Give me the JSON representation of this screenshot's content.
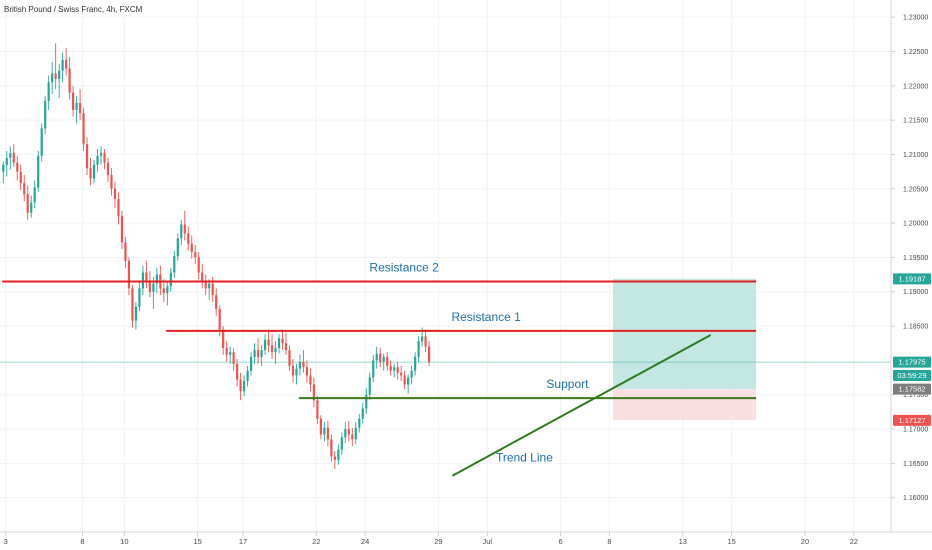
{
  "chart_data": {
    "type": "candlestick",
    "title": "British Pound / Swiss Franc, 4h, FXCM",
    "colors": {
      "up": "#26a69a",
      "down": "#ef5350",
      "resistance": "#e02020",
      "support": "#3a7a1a",
      "trend": "#2f7a1f",
      "text_blue": "#1f6fa8",
      "profit_zone": "#b2dfdb",
      "loss_zone": "#fadadd",
      "current_line": "#26a69a"
    },
    "y_axis": {
      "min": 1.155,
      "max": 1.2325,
      "ticks": [
        {
          "value": 1.23,
          "label": "1.23000"
        },
        {
          "value": 1.225,
          "label": "1.22500"
        },
        {
          "value": 1.22,
          "label": "1.22000"
        },
        {
          "value": 1.215,
          "label": "1.21500"
        },
        {
          "value": 1.21,
          "label": "1.21000"
        },
        {
          "value": 1.205,
          "label": "1.20500"
        },
        {
          "value": 1.2,
          "label": "1.20000"
        },
        {
          "value": 1.195,
          "label": "1.19500"
        },
        {
          "value": 1.19,
          "label": "1.19000"
        },
        {
          "value": 1.185,
          "label": "1.18500"
        },
        {
          "value": 1.175,
          "label": "1.17500"
        },
        {
          "value": 1.17,
          "label": "1.17000"
        },
        {
          "value": 1.165,
          "label": "1.16500"
        },
        {
          "value": 1.16,
          "label": "1.16000"
        }
      ]
    },
    "x_axis": {
      "ticks": [
        {
          "bar": 1,
          "label": "3"
        },
        {
          "bar": 23,
          "label": "8"
        },
        {
          "bar": 35,
          "label": "10"
        },
        {
          "bar": 56,
          "label": "15"
        },
        {
          "bar": 69,
          "label": "17"
        },
        {
          "bar": 90,
          "label": "22"
        },
        {
          "bar": 104,
          "label": "24"
        },
        {
          "bar": 125,
          "label": "29"
        },
        {
          "bar": 139,
          "label": "Jul"
        },
        {
          "bar": 160,
          "label": "6"
        },
        {
          "bar": 174,
          "label": "8"
        },
        {
          "bar": 195,
          "label": "13"
        },
        {
          "bar": 209,
          "label": "15"
        },
        {
          "bar": 230,
          "label": "20"
        },
        {
          "bar": 244,
          "label": "22"
        }
      ]
    },
    "levels": [
      {
        "name": "Resistance 2",
        "value": 1.1915,
        "bar_start": 0,
        "bar_end": 216,
        "kind": "resistance"
      },
      {
        "name": "Resistance 1",
        "value": 1.1843,
        "bar_start": 47,
        "bar_end": 216,
        "kind": "resistance"
      },
      {
        "name": "Support",
        "value": 1.1745,
        "bar_start": 85,
        "bar_end": 216,
        "kind": "support"
      }
    ],
    "trend_line": {
      "name": "Trend Line",
      "start": {
        "bar": 129,
        "price": 1.1632
      },
      "end": {
        "bar": 203,
        "price": 1.1837
      }
    },
    "position": {
      "bar_start": 175,
      "bar_end": 216,
      "entry": 1.1758,
      "target": 1.1919,
      "stop": 1.1713
    },
    "price_badges": [
      {
        "value": 1.19187,
        "label": "1.19187",
        "color": "#26a69a"
      },
      {
        "value": 1.17975,
        "label": "1.17975",
        "color": "#26a69a"
      },
      {
        "value": 1.1778,
        "label": "03:59:29",
        "color": "#26a69a"
      },
      {
        "value": 1.17582,
        "label": "1.17582",
        "color": "#7d7d7d"
      },
      {
        "value": 1.17127,
        "label": "1.17127",
        "color": "#ef5350"
      }
    ],
    "current_price": 1.17975,
    "candles": [
      [
        1.2075,
        1.209,
        1.2058,
        1.2085
      ],
      [
        1.2085,
        1.2105,
        1.2068,
        1.2095
      ],
      [
        1.2095,
        1.2112,
        1.2078,
        1.2102
      ],
      [
        1.2102,
        1.2115,
        1.2082,
        1.2088
      ],
      [
        1.2088,
        1.2098,
        1.2062,
        1.2075
      ],
      [
        1.2075,
        1.2085,
        1.2048,
        1.2058
      ],
      [
        1.2058,
        1.207,
        1.2032,
        1.2042
      ],
      [
        1.2042,
        1.2055,
        1.2005,
        1.2015
      ],
      [
        1.2015,
        1.204,
        1.2008,
        1.203
      ],
      [
        1.203,
        1.2062,
        1.2022,
        1.2052
      ],
      [
        1.2052,
        1.2105,
        1.2045,
        1.2098
      ],
      [
        1.2098,
        1.2145,
        1.209,
        1.2138
      ],
      [
        1.2138,
        1.2185,
        1.213,
        1.2178
      ],
      [
        1.2178,
        1.2215,
        1.2165,
        1.2205
      ],
      [
        1.2205,
        1.2235,
        1.2188,
        1.2218
      ],
      [
        1.2218,
        1.2262,
        1.2195,
        1.221
      ],
      [
        1.221,
        1.2232,
        1.2182,
        1.2222
      ],
      [
        1.2222,
        1.2248,
        1.2205,
        1.2238
      ],
      [
        1.2238,
        1.2255,
        1.2215,
        1.2225
      ],
      [
        1.2225,
        1.2242,
        1.218,
        1.219
      ],
      [
        1.219,
        1.22,
        1.2155,
        1.2165
      ],
      [
        1.2165,
        1.2185,
        1.2145,
        1.2175
      ],
      [
        1.2175,
        1.2195,
        1.215,
        1.216
      ],
      [
        1.216,
        1.2168,
        1.2105,
        1.2115
      ],
      [
        1.2115,
        1.2125,
        1.207,
        1.208
      ],
      [
        1.208,
        1.2095,
        1.2055,
        1.2065
      ],
      [
        1.2065,
        1.2092,
        1.2058,
        1.2085
      ],
      [
        1.2085,
        1.2108,
        1.2075,
        1.2098
      ],
      [
        1.2098,
        1.2112,
        1.2085,
        1.2102
      ],
      [
        1.2102,
        1.2108,
        1.2078,
        1.2088
      ],
      [
        1.2088,
        1.2095,
        1.206,
        1.207
      ],
      [
        1.207,
        1.208,
        1.204,
        1.205
      ],
      [
        1.205,
        1.206,
        1.2022,
        1.2035
      ],
      [
        1.2035,
        1.2045,
        1.1998,
        1.201
      ],
      [
        1.201,
        1.2018,
        1.1962,
        1.1972
      ],
      [
        1.1972,
        1.198,
        1.1935,
        1.1945
      ],
      [
        1.1945,
        1.195,
        1.1895,
        1.1905
      ],
      [
        1.1905,
        1.191,
        1.1848,
        1.1858
      ],
      [
        1.1858,
        1.1885,
        1.1845,
        1.1878
      ],
      [
        1.1878,
        1.1915,
        1.1872,
        1.1905
      ],
      [
        1.1905,
        1.1938,
        1.1895,
        1.1928
      ],
      [
        1.1928,
        1.1945,
        1.1905,
        1.1915
      ],
      [
        1.1915,
        1.193,
        1.1892,
        1.19
      ],
      [
        1.19,
        1.1922,
        1.1875,
        1.1912
      ],
      [
        1.1912,
        1.1935,
        1.1898,
        1.1925
      ],
      [
        1.1925,
        1.1938,
        1.1895,
        1.1905
      ],
      [
        1.1905,
        1.1918,
        1.1885,
        1.1898
      ],
      [
        1.1898,
        1.1915,
        1.188,
        1.1908
      ],
      [
        1.1908,
        1.1935,
        1.19,
        1.1928
      ],
      [
        1.1928,
        1.196,
        1.192,
        1.1952
      ],
      [
        1.1952,
        1.1985,
        1.1945,
        1.1978
      ],
      [
        1.1978,
        1.2005,
        1.1968,
        1.1998
      ],
      [
        1.1998,
        1.2018,
        1.1975,
        1.1985
      ],
      [
        1.1985,
        1.1995,
        1.196,
        1.197
      ],
      [
        1.197,
        1.1982,
        1.1948,
        1.1958
      ],
      [
        1.1958,
        1.1968,
        1.194,
        1.195
      ],
      [
        1.195,
        1.1958,
        1.1918,
        1.1928
      ],
      [
        1.1928,
        1.194,
        1.1905,
        1.1915
      ],
      [
        1.1915,
        1.1925,
        1.1895,
        1.1905
      ],
      [
        1.1905,
        1.1918,
        1.1888,
        1.1912
      ],
      [
        1.1912,
        1.1922,
        1.1885,
        1.1895
      ],
      [
        1.1895,
        1.1905,
        1.1865,
        1.1875
      ],
      [
        1.1875,
        1.188,
        1.1835,
        1.1845
      ],
      [
        1.1845,
        1.185,
        1.1808,
        1.1818
      ],
      [
        1.1818,
        1.1828,
        1.1798,
        1.1808
      ],
      [
        1.1808,
        1.182,
        1.1795,
        1.1812
      ],
      [
        1.1812,
        1.1818,
        1.1785,
        1.1795
      ],
      [
        1.1795,
        1.1802,
        1.1762,
        1.1772
      ],
      [
        1.1772,
        1.1782,
        1.1742,
        1.1755
      ],
      [
        1.1755,
        1.1778,
        1.1748,
        1.177
      ],
      [
        1.177,
        1.1792,
        1.1762,
        1.1785
      ],
      [
        1.1785,
        1.1812,
        1.1778,
        1.1805
      ],
      [
        1.1805,
        1.1825,
        1.1795,
        1.1815
      ],
      [
        1.1815,
        1.1832,
        1.1795,
        1.1805
      ],
      [
        1.1805,
        1.1822,
        1.1792,
        1.1815
      ],
      [
        1.1815,
        1.1838,
        1.1808,
        1.183
      ],
      [
        1.183,
        1.1845,
        1.1812,
        1.1822
      ],
      [
        1.1822,
        1.1838,
        1.1802,
        1.1812
      ],
      [
        1.1812,
        1.1828,
        1.1795,
        1.1818
      ],
      [
        1.1818,
        1.1838,
        1.181,
        1.1832
      ],
      [
        1.1832,
        1.1845,
        1.1815,
        1.1825
      ],
      [
        1.1825,
        1.184,
        1.1808,
        1.1815
      ],
      [
        1.1815,
        1.1822,
        1.1785,
        1.1792
      ],
      [
        1.1792,
        1.1802,
        1.1768,
        1.1778
      ],
      [
        1.1778,
        1.1795,
        1.1765,
        1.1788
      ],
      [
        1.1788,
        1.1808,
        1.1778,
        1.1798
      ],
      [
        1.1798,
        1.1815,
        1.1782,
        1.179
      ],
      [
        1.179,
        1.18,
        1.1768,
        1.1778
      ],
      [
        1.1778,
        1.1788,
        1.1755,
        1.1765
      ],
      [
        1.1765,
        1.1775,
        1.1732,
        1.1742
      ],
      [
        1.1742,
        1.1748,
        1.1708,
        1.1715
      ],
      [
        1.1715,
        1.172,
        1.1685,
        1.1692
      ],
      [
        1.1692,
        1.171,
        1.1682,
        1.1702
      ],
      [
        1.1702,
        1.1712,
        1.1675,
        1.1685
      ],
      [
        1.1685,
        1.1692,
        1.1652,
        1.166
      ],
      [
        1.166,
        1.1668,
        1.1642,
        1.1655
      ],
      [
        1.1655,
        1.1678,
        1.1648,
        1.167
      ],
      [
        1.167,
        1.1695,
        1.1662,
        1.1688
      ],
      [
        1.1688,
        1.171,
        1.168,
        1.17
      ],
      [
        1.17,
        1.1712,
        1.1682,
        1.1692
      ],
      [
        1.1692,
        1.1702,
        1.1675,
        1.1685
      ],
      [
        1.1685,
        1.171,
        1.1678,
        1.1702
      ],
      [
        1.1702,
        1.1722,
        1.1695,
        1.1715
      ],
      [
        1.1715,
        1.1738,
        1.1708,
        1.173
      ],
      [
        1.173,
        1.176,
        1.1722,
        1.175
      ],
      [
        1.175,
        1.1782,
        1.1742,
        1.1775
      ],
      [
        1.1775,
        1.1808,
        1.1768,
        1.18
      ],
      [
        1.18,
        1.182,
        1.1788,
        1.181
      ],
      [
        1.181,
        1.1818,
        1.179,
        1.1798
      ],
      [
        1.1798,
        1.181,
        1.1785,
        1.1805
      ],
      [
        1.1805,
        1.1812,
        1.1785,
        1.1792
      ],
      [
        1.1792,
        1.18,
        1.1778,
        1.1785
      ],
      [
        1.1785,
        1.1795,
        1.1775,
        1.179
      ],
      [
        1.179,
        1.1798,
        1.1772,
        1.1782
      ],
      [
        1.1782,
        1.1792,
        1.177,
        1.1778
      ],
      [
        1.1778,
        1.1785,
        1.1758,
        1.1765
      ],
      [
        1.1765,
        1.178,
        1.1752,
        1.1775
      ],
      [
        1.1775,
        1.1792,
        1.1765,
        1.1785
      ],
      [
        1.1785,
        1.1812,
        1.1778,
        1.1805
      ],
      [
        1.1805,
        1.1835,
        1.1798,
        1.1828
      ],
      [
        1.1828,
        1.1848,
        1.182,
        1.1835
      ],
      [
        1.1835,
        1.1845,
        1.1812,
        1.182
      ],
      [
        1.182,
        1.1828,
        1.1792,
        1.1798
      ]
    ]
  }
}
